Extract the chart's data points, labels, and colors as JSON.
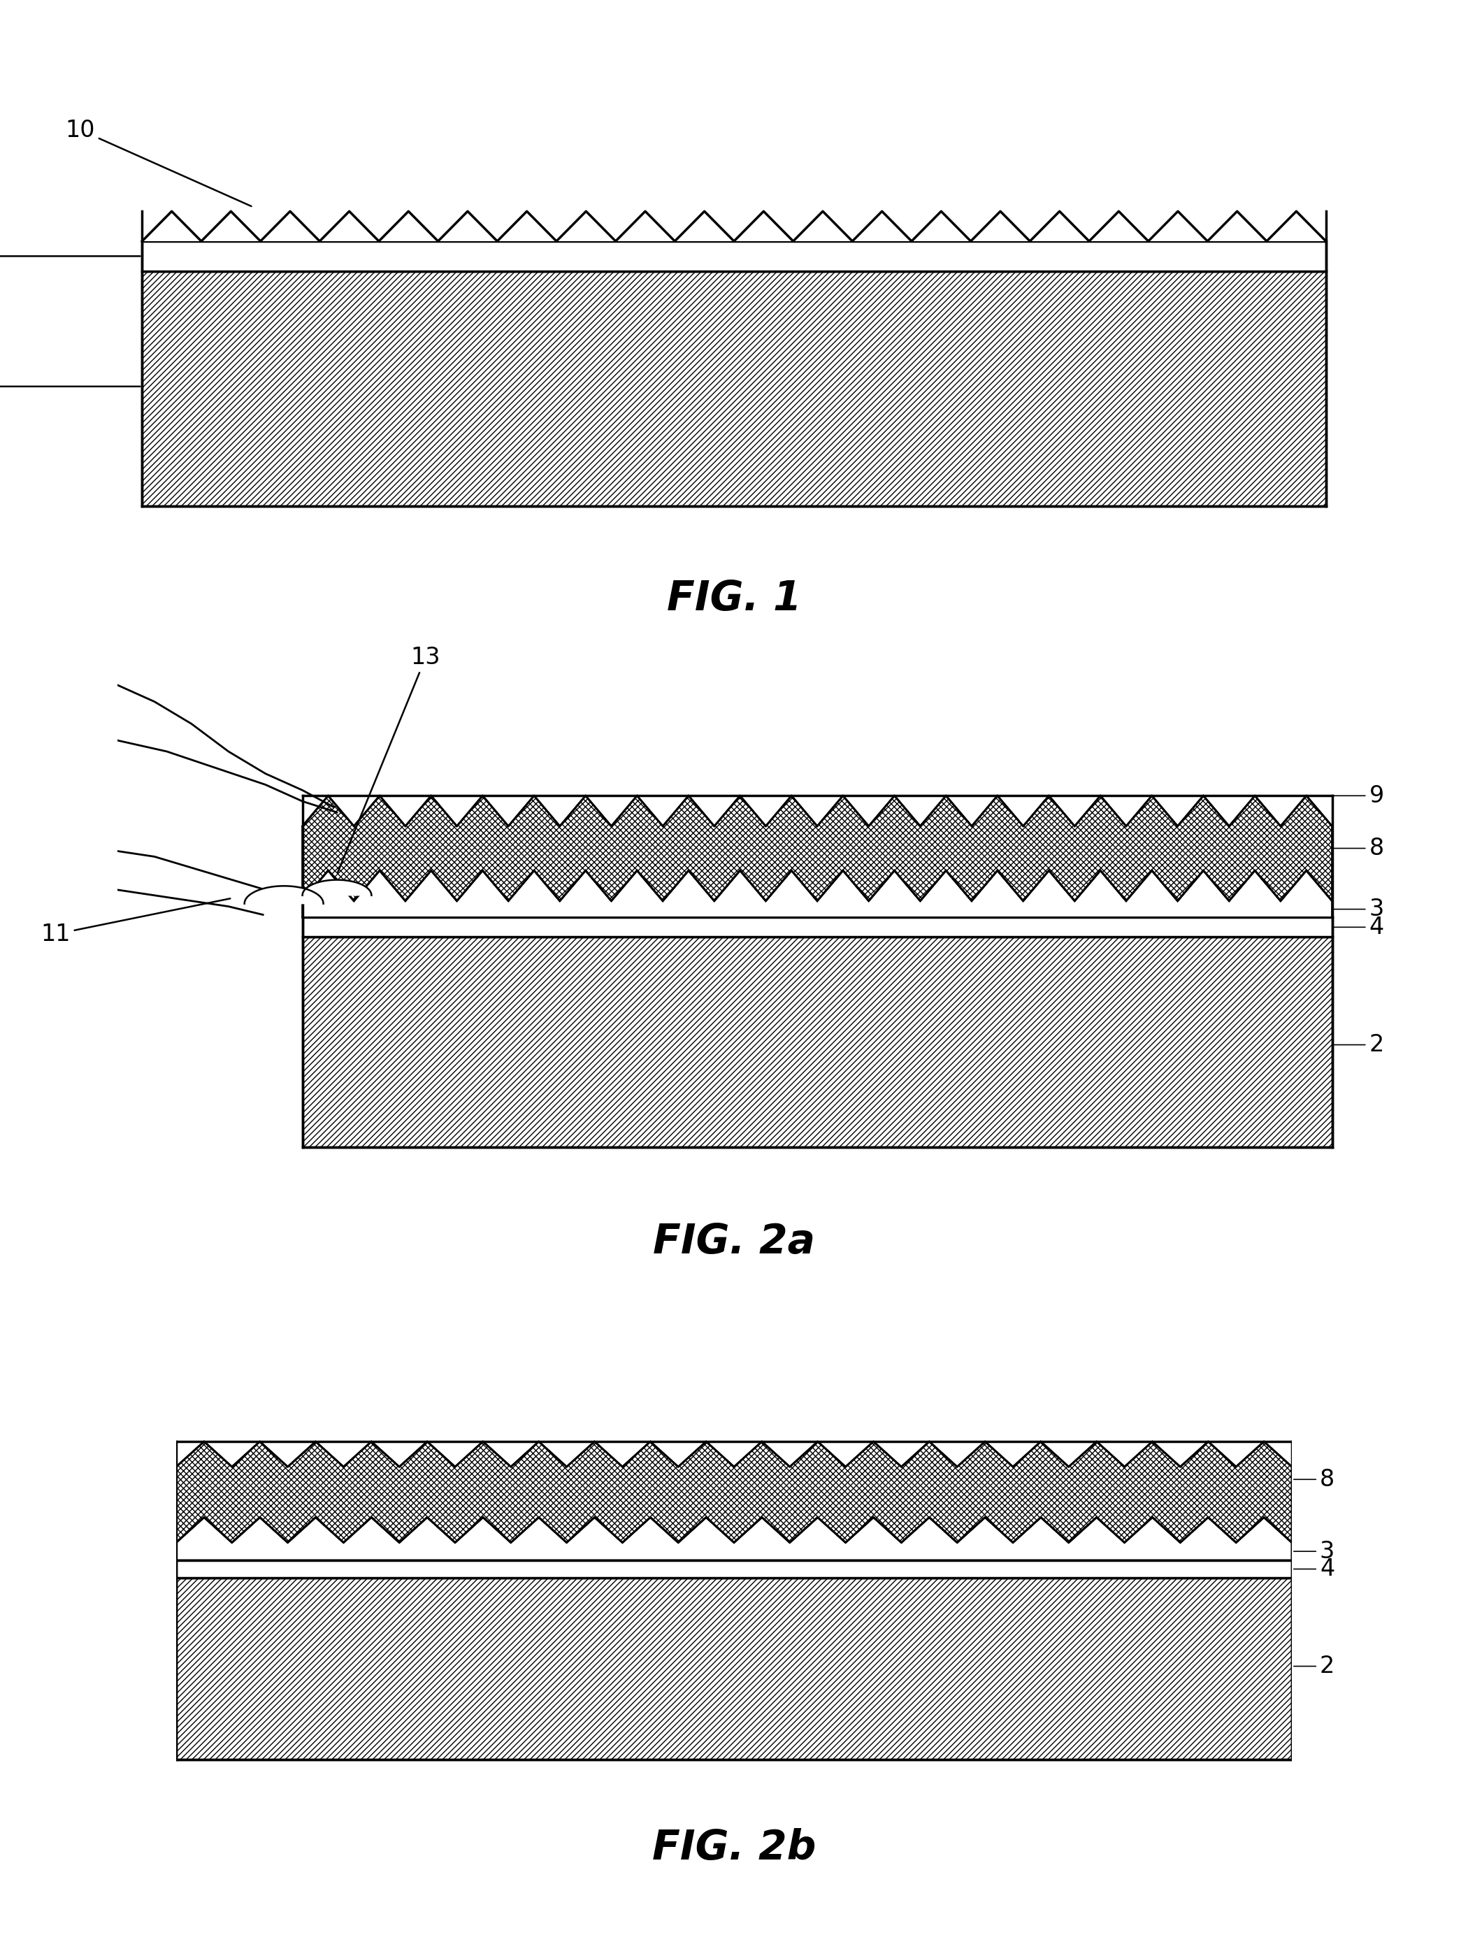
{
  "fig_width": 21.0,
  "fig_height": 27.78,
  "bg_color": "#ffffff",
  "fig1_title": "FIG. 1",
  "fig2a_title": "FIG. 2a",
  "fig2b_title": "FIG. 2b",
  "label_fontsize": 24,
  "caption_fontsize": 42,
  "n_teeth": 20
}
